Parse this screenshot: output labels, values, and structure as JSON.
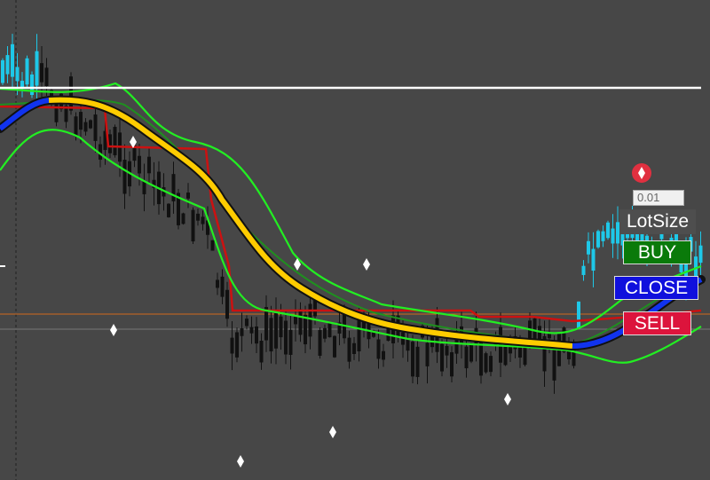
{
  "trade_panel": {
    "lot_value": "0.01",
    "lot_label": "LotSize",
    "buttons": [
      "BUY",
      "CLOSE",
      "SELL"
    ]
  }
}
